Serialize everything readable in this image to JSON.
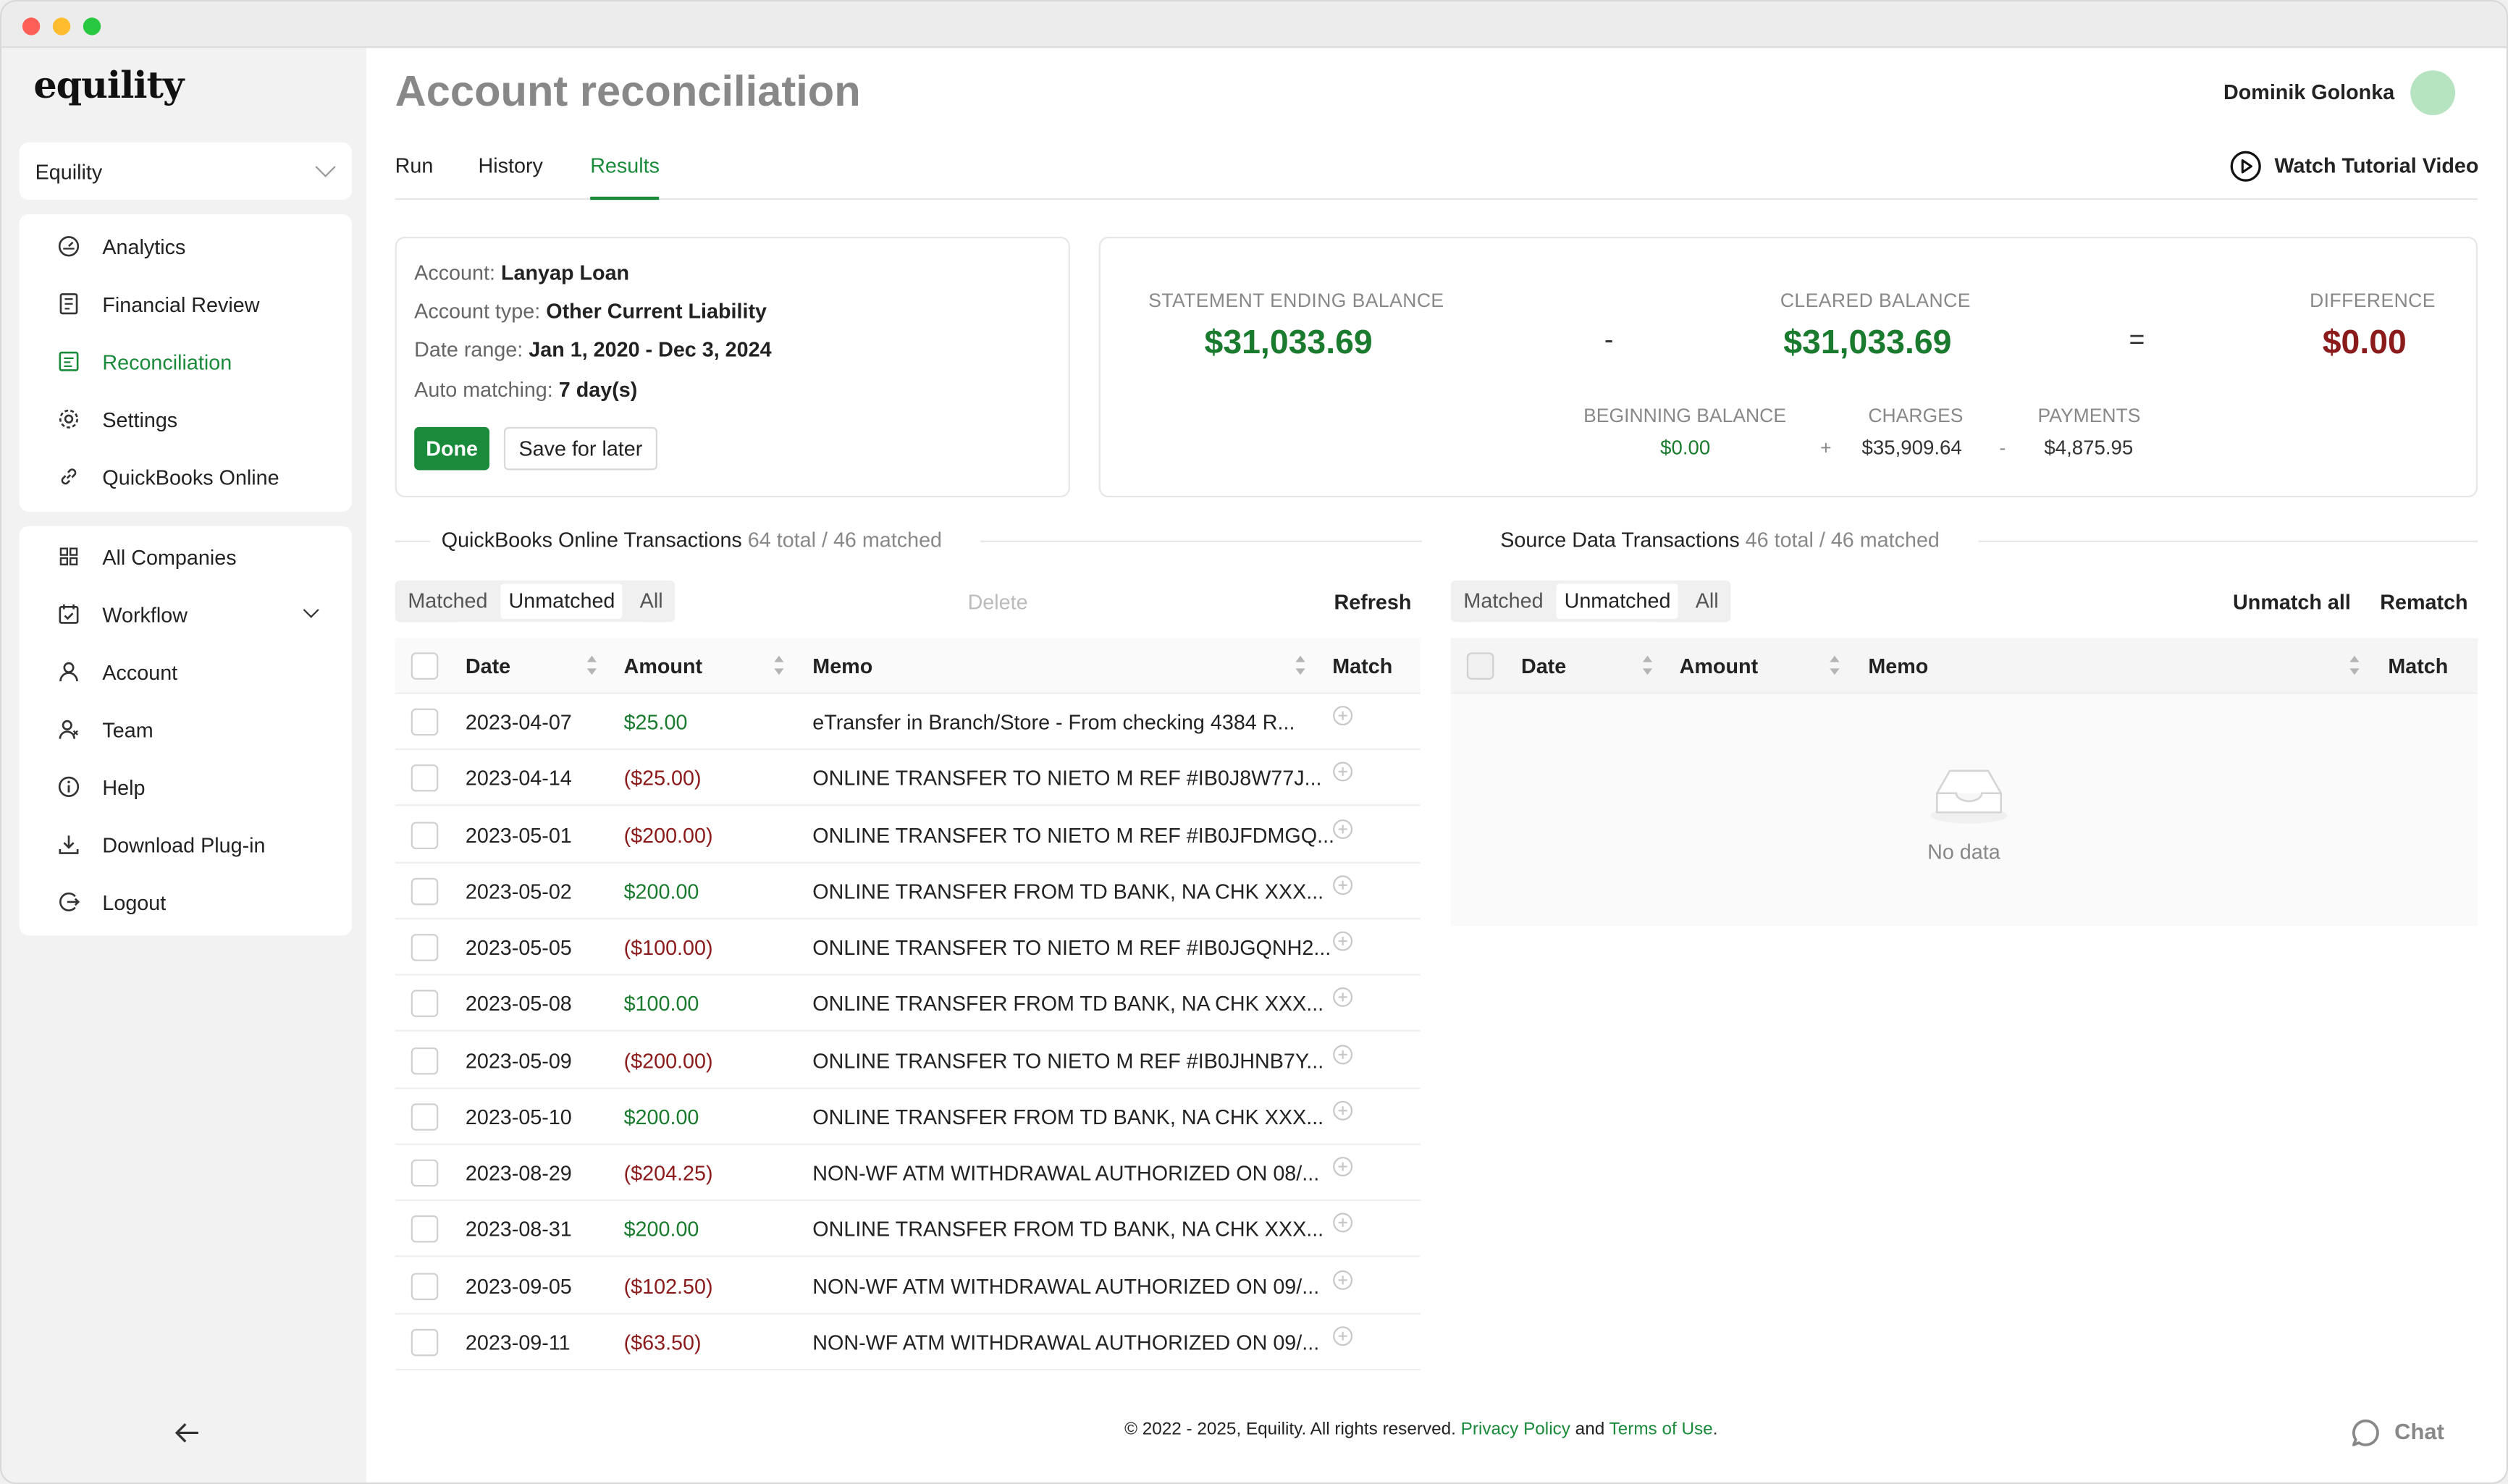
{
  "app": {
    "logo": "equility"
  },
  "sidebar": {
    "company": "Equility",
    "primary_nav": [
      {
        "label": "Analytics",
        "icon": "gauge-icon"
      },
      {
        "label": "Financial Review",
        "icon": "report-icon"
      },
      {
        "label": "Reconciliation",
        "icon": "reconcile-icon",
        "active": true
      },
      {
        "label": "Settings",
        "icon": "gear-icon"
      },
      {
        "label": "QuickBooks Online",
        "icon": "link-icon"
      }
    ],
    "secondary_nav": [
      {
        "label": "All Companies",
        "icon": "grid-icon"
      },
      {
        "label": "Workflow",
        "icon": "calendar-check-icon",
        "expandable": true
      },
      {
        "label": "Account",
        "icon": "user-icon"
      },
      {
        "label": "Team",
        "icon": "team-icon"
      },
      {
        "label": "Help",
        "icon": "info-icon"
      },
      {
        "label": "Download Plug-in",
        "icon": "download-icon"
      },
      {
        "label": "Logout",
        "icon": "logout-icon"
      }
    ]
  },
  "header": {
    "title": "Account reconciliation",
    "user_name": "Dominik Golonka",
    "tabs": [
      "Run",
      "History",
      "Results"
    ],
    "active_tab": "Results",
    "tutorial_label": "Watch Tutorial Video"
  },
  "account_info": {
    "account_label": "Account:",
    "account_value": "Lanyap Loan",
    "type_label": "Account type:",
    "type_value": "Other Current Liability",
    "range_label": "Date range:",
    "range_value": "Jan 1, 2020 - Dec 3, 2024",
    "auto_label": "Auto matching:",
    "auto_value": "7 day(s)",
    "done_label": "Done",
    "later_label": "Save for later"
  },
  "balances": {
    "statement_label": "STATEMENT ENDING BALANCE",
    "statement_value": "$31,033.69",
    "minus": "-",
    "cleared_label": "CLEARED BALANCE",
    "cleared_value": "$31,033.69",
    "equals": "=",
    "difference_label": "DIFFERENCE",
    "difference_value": "$0.00",
    "beginning_label": "BEGINNING BALANCE",
    "beginning_value": "$0.00",
    "plus": "+",
    "charges_label": "CHARGES",
    "charges_value": "$35,909.64",
    "minus2": "-",
    "payments_label": "PAYMENTS",
    "payments_value": "$4,875.95"
  },
  "qbo": {
    "title": "QuickBooks Online Transactions",
    "count": "64 total / 46 matched",
    "filters": [
      "Matched",
      "Unmatched",
      "All"
    ],
    "active_filter": "Unmatched",
    "delete_label": "Delete",
    "refresh_label": "Refresh",
    "columns": [
      "Date",
      "Amount",
      "Memo",
      "Match"
    ],
    "rows": [
      {
        "date": "2023-04-07",
        "amount": "$25.00",
        "sign": "pos",
        "memo": "eTransfer in Branch/Store - From checking 4384 R..."
      },
      {
        "date": "2023-04-14",
        "amount": "($25.00)",
        "sign": "neg",
        "memo": "ONLINE TRANSFER TO NIETO M REF #IB0J8W77J..."
      },
      {
        "date": "2023-05-01",
        "amount": "($200.00)",
        "sign": "neg",
        "memo": "ONLINE TRANSFER TO NIETO M REF #IB0JFDMGQ..."
      },
      {
        "date": "2023-05-02",
        "amount": "$200.00",
        "sign": "pos",
        "memo": "ONLINE TRANSFER FROM TD BANK, NA CHK XXX..."
      },
      {
        "date": "2023-05-05",
        "amount": "($100.00)",
        "sign": "neg",
        "memo": "ONLINE TRANSFER TO NIETO M REF #IB0JGQNH2..."
      },
      {
        "date": "2023-05-08",
        "amount": "$100.00",
        "sign": "pos",
        "memo": "ONLINE TRANSFER FROM TD BANK, NA CHK XXX..."
      },
      {
        "date": "2023-05-09",
        "amount": "($200.00)",
        "sign": "neg",
        "memo": "ONLINE TRANSFER TO NIETO M REF #IB0JHNB7Y..."
      },
      {
        "date": "2023-05-10",
        "amount": "$200.00",
        "sign": "pos",
        "memo": "ONLINE TRANSFER FROM TD BANK, NA CHK XXX..."
      },
      {
        "date": "2023-08-29",
        "amount": "($204.25)",
        "sign": "neg",
        "memo": "NON-WF ATM WITHDRAWAL AUTHORIZED ON 08/..."
      },
      {
        "date": "2023-08-31",
        "amount": "$200.00",
        "sign": "pos",
        "memo": "ONLINE TRANSFER FROM TD BANK, NA CHK XXX..."
      },
      {
        "date": "2023-09-05",
        "amount": "($102.50)",
        "sign": "neg",
        "memo": "NON-WF ATM WITHDRAWAL AUTHORIZED ON 09/..."
      },
      {
        "date": "2023-09-11",
        "amount": "($63.50)",
        "sign": "neg",
        "memo": "NON-WF ATM WITHDRAWAL AUTHORIZED ON 09/..."
      }
    ]
  },
  "source": {
    "title": "Source Data Transactions",
    "count": "46 total / 46 matched",
    "filters": [
      "Matched",
      "Unmatched",
      "All"
    ],
    "active_filter": "Unmatched",
    "unmatch_label": "Unmatch all",
    "rematch_label": "Rematch",
    "columns": [
      "Date",
      "Amount",
      "Memo",
      "Match"
    ],
    "empty_text": "No data"
  },
  "footer": {
    "copyright": "© 2022 - 2025, Equility. All rights reserved.",
    "privacy": "Privacy Policy",
    "and": "and",
    "terms": "Terms of Use",
    "period": ".",
    "chat_label": "Chat"
  },
  "colors": {
    "accent": "#1a8a3b",
    "positive": "#1a7a2e",
    "negative": "#8b1a1a"
  }
}
